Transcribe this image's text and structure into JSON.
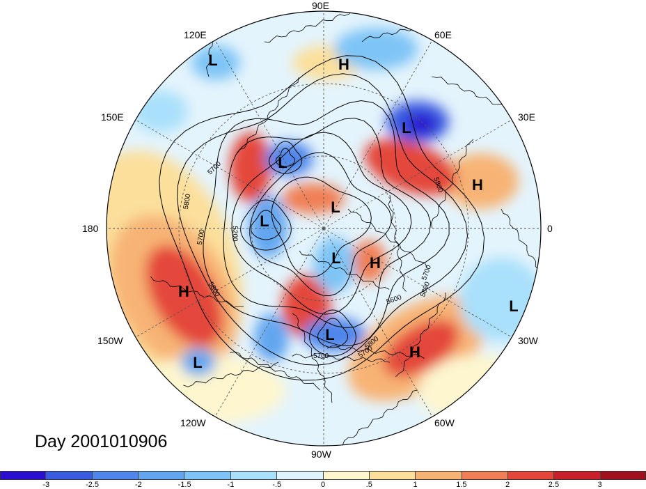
{
  "title": "Day 2001010906",
  "longitude_labels": {
    "lon_90e": "90E",
    "lon_60e": "60E",
    "lon_120e": "120E",
    "lon_30e": "30E",
    "lon_150e": "150E",
    "lon_0": "0",
    "lon_180": "180",
    "lon_30w": "30W",
    "lon_150w": "150W",
    "lon_60w": "60W",
    "lon_120w": "120W",
    "lon_90w": "90W"
  },
  "pressure_centers": [
    {
      "type": "L",
      "label": "L"
    },
    {
      "type": "H",
      "label": "H"
    },
    {
      "type": "L",
      "label": "L"
    },
    {
      "type": "L",
      "label": "L"
    },
    {
      "type": "H",
      "label": "H"
    },
    {
      "type": "L",
      "label": "L"
    },
    {
      "type": "L",
      "label": "L"
    },
    {
      "type": "L",
      "label": "L"
    },
    {
      "type": "L",
      "label": "L"
    },
    {
      "type": "H",
      "label": "H"
    },
    {
      "type": "H",
      "label": "H"
    },
    {
      "type": "L",
      "label": "L"
    },
    {
      "type": "L",
      "label": "L"
    },
    {
      "type": "H",
      "label": "H"
    }
  ],
  "contour_labels": [
    "5700",
    "5800",
    "5800",
    "5700",
    "5200",
    "5800",
    "5700",
    "5800",
    "5600",
    "5700",
    "5800",
    "5700"
  ],
  "colorbar": {
    "ticks": [
      "-3",
      "-2.5",
      "-2",
      "-1.5",
      "-1",
      "-.5",
      "0",
      ".5",
      "1",
      "1.5",
      "2",
      "2.5",
      "3"
    ],
    "colors": [
      "#2a0fd0",
      "#3a5ae0",
      "#4f86ea",
      "#62a6f0",
      "#7ec4f6",
      "#a9e0fb",
      "#dff4fc",
      "#fdf6cf",
      "#fbdf9b",
      "#f7b374",
      "#f07f55",
      "#e4473a",
      "#c91f2a",
      "#a0101f"
    ]
  },
  "colors": {
    "background": "#ffffff",
    "coast": "#000000",
    "grid": "#555555"
  }
}
